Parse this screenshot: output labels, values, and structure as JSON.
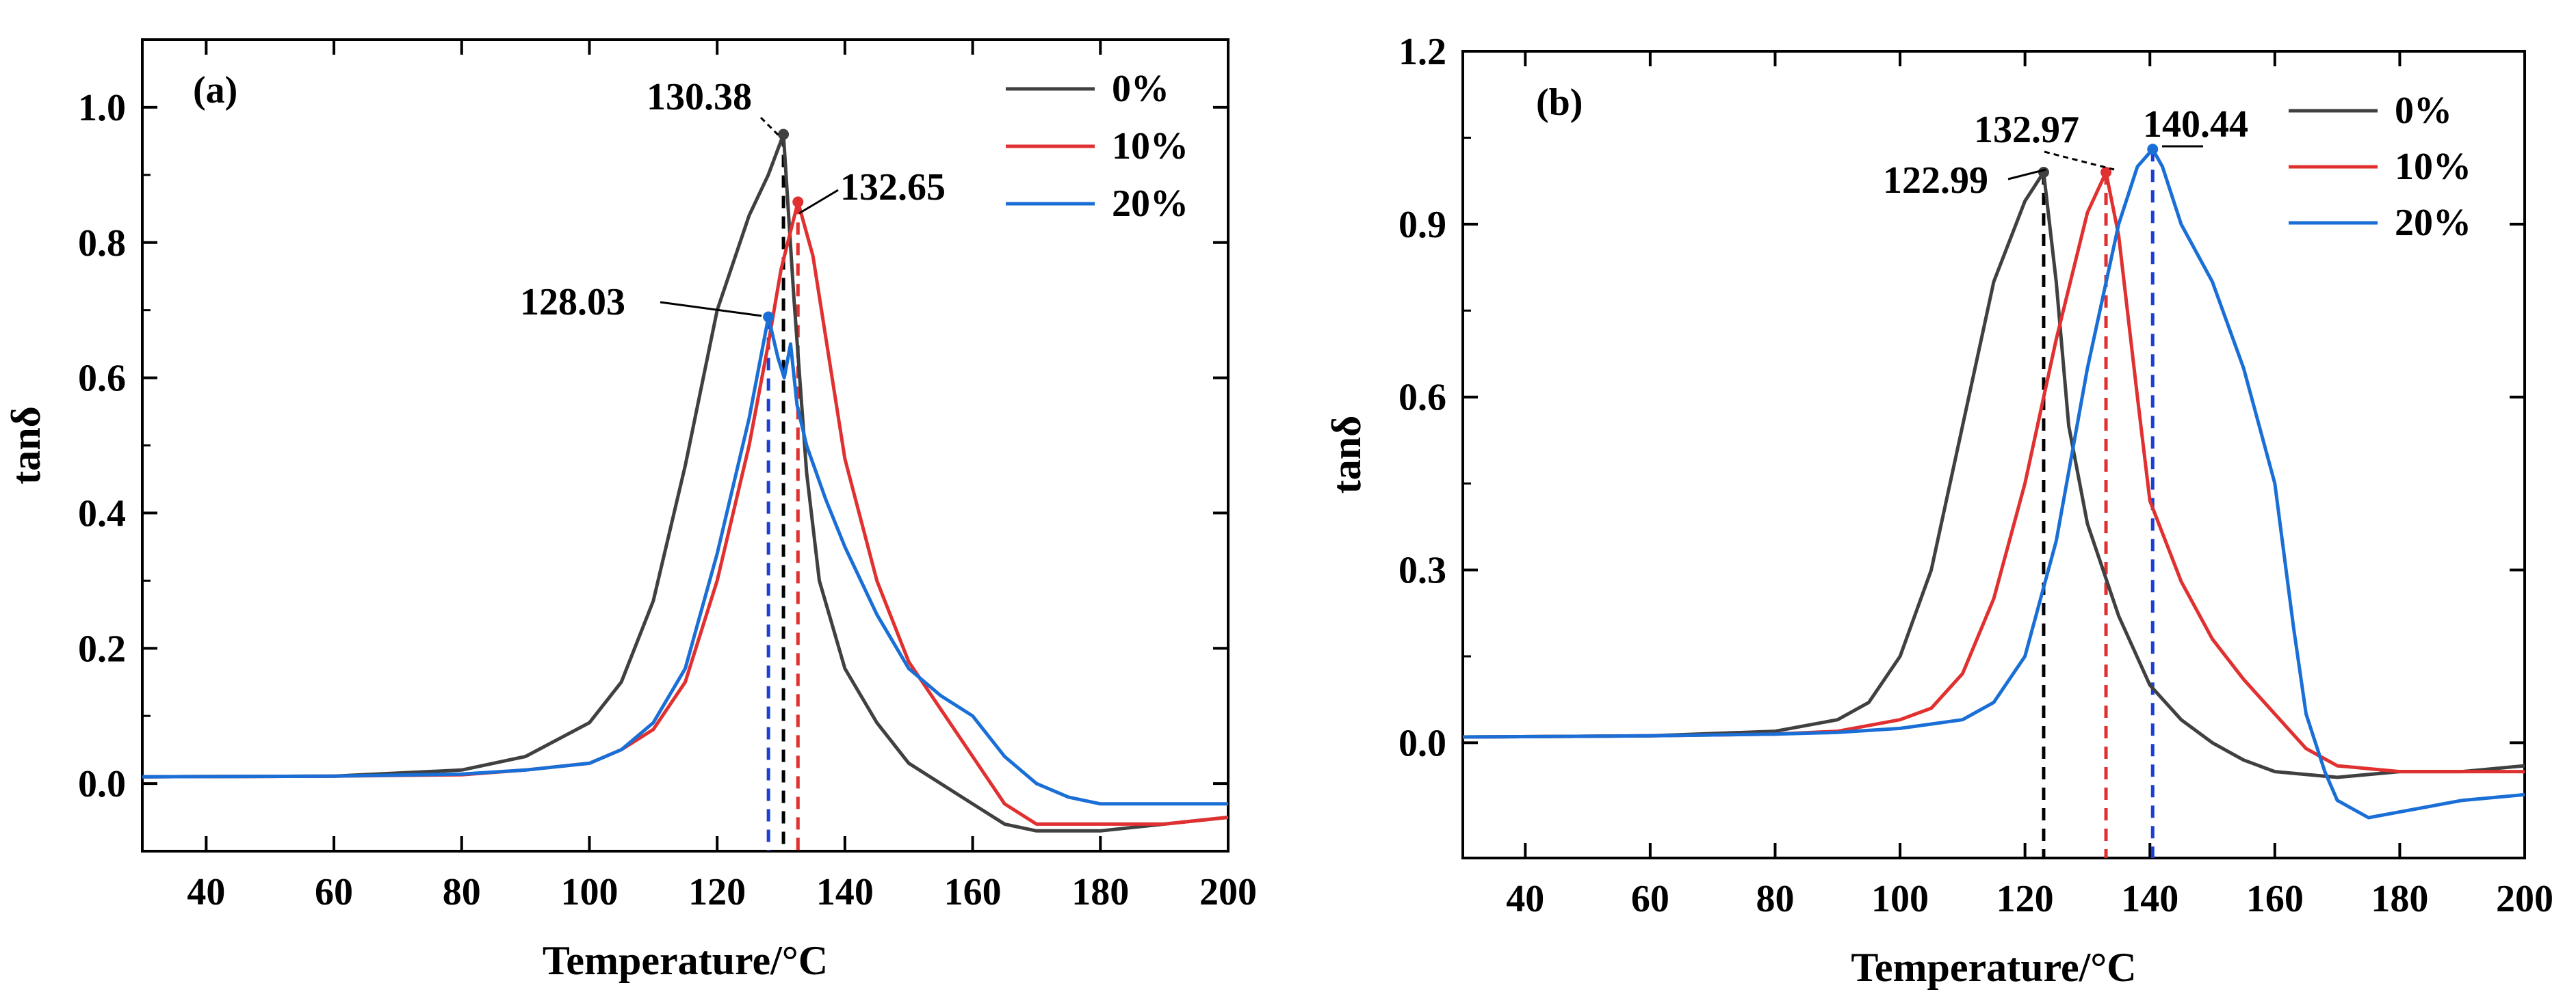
{
  "chart_data": [
    {
      "type": "line",
      "panel_label": "(a)",
      "xlabel": "Temperature/°C",
      "ylabel": "tanδ",
      "xlim": [
        30,
        200
      ],
      "ylim": [
        -0.1,
        1.1
      ],
      "xticks": [
        40,
        60,
        80,
        100,
        120,
        140,
        160,
        180,
        200
      ],
      "yticks": [
        0.0,
        0.2,
        0.4,
        0.6,
        0.8,
        1.0
      ],
      "ytick_labels": [
        "0.0",
        "0.2",
        "0.4",
        "0.6",
        "0.8",
        "1.0"
      ],
      "legend_position": "top-right",
      "series": [
        {
          "name": "0%",
          "color": "#404040",
          "points": [
            [
              30,
              0.01
            ],
            [
              60,
              0.011
            ],
            [
              80,
              0.02
            ],
            [
              90,
              0.04
            ],
            [
              100,
              0.09
            ],
            [
              105,
              0.15
            ],
            [
              110,
              0.27
            ],
            [
              115,
              0.47
            ],
            [
              120,
              0.7
            ],
            [
              125,
              0.84
            ],
            [
              128,
              0.9
            ],
            [
              130.38,
              0.96
            ],
            [
              132,
              0.72
            ],
            [
              134,
              0.46
            ],
            [
              136,
              0.3
            ],
            [
              140,
              0.17
            ],
            [
              145,
              0.09
            ],
            [
              150,
              0.03
            ],
            [
              160,
              -0.03
            ],
            [
              165,
              -0.06
            ],
            [
              170,
              -0.07
            ],
            [
              180,
              -0.07
            ],
            [
              190,
              -0.06
            ],
            [
              200,
              -0.05
            ]
          ]
        },
        {
          "name": "10%",
          "color": "#e03030",
          "points": [
            [
              30,
              0.01
            ],
            [
              60,
              0.011
            ],
            [
              80,
              0.013
            ],
            [
              90,
              0.02
            ],
            [
              100,
              0.03
            ],
            [
              105,
              0.05
            ],
            [
              110,
              0.08
            ],
            [
              115,
              0.15
            ],
            [
              120,
              0.3
            ],
            [
              125,
              0.5
            ],
            [
              128,
              0.65
            ],
            [
              130,
              0.76
            ],
            [
              132.65,
              0.86
            ],
            [
              135,
              0.78
            ],
            [
              138,
              0.6
            ],
            [
              140,
              0.48
            ],
            [
              145,
              0.3
            ],
            [
              150,
              0.18
            ],
            [
              155,
              0.11
            ],
            [
              160,
              0.04
            ],
            [
              165,
              -0.03
            ],
            [
              170,
              -0.06
            ],
            [
              180,
              -0.06
            ],
            [
              190,
              -0.06
            ],
            [
              200,
              -0.05
            ]
          ]
        },
        {
          "name": "20%",
          "color": "#1a6fd6",
          "points": [
            [
              30,
              0.01
            ],
            [
              60,
              0.011
            ],
            [
              80,
              0.014
            ],
            [
              90,
              0.02
            ],
            [
              100,
              0.03
            ],
            [
              105,
              0.05
            ],
            [
              110,
              0.09
            ],
            [
              115,
              0.17
            ],
            [
              120,
              0.34
            ],
            [
              125,
              0.54
            ],
            [
              128.03,
              0.69
            ],
            [
              129.5,
              0.63
            ],
            [
              130.5,
              0.6
            ],
            [
              131.5,
              0.65
            ],
            [
              132.5,
              0.56
            ],
            [
              134,
              0.5
            ],
            [
              137,
              0.42
            ],
            [
              140,
              0.35
            ],
            [
              145,
              0.25
            ],
            [
              150,
              0.17
            ],
            [
              155,
              0.13
            ],
            [
              160,
              0.1
            ],
            [
              165,
              0.04
            ],
            [
              170,
              0.0
            ],
            [
              175,
              -0.02
            ],
            [
              180,
              -0.03
            ],
            [
              190,
              -0.03
            ],
            [
              200,
              -0.03
            ]
          ]
        }
      ],
      "peak_markers": [
        {
          "label": "130.38",
          "x": 130.38,
          "y": 0.96,
          "color": "#000000"
        },
        {
          "label": "132.65",
          "x": 132.65,
          "y": 0.86,
          "color": "#e03030"
        },
        {
          "label": "128.03",
          "x": 128.03,
          "y": 0.69,
          "color": "#1a3fd6"
        }
      ]
    },
    {
      "type": "line",
      "panel_label": "(b)",
      "xlabel": "Temperature/°C",
      "ylabel": "tanδ",
      "xlim": [
        30,
        200
      ],
      "ylim": [
        -0.2,
        1.2
      ],
      "xticks": [
        40,
        60,
        80,
        100,
        120,
        140,
        160,
        180,
        200
      ],
      "yticks": [
        0.0,
        0.3,
        0.6,
        0.9,
        1.2
      ],
      "ytick_labels": [
        "0.0",
        "0.3",
        "0.6",
        "0.9",
        "1.2"
      ],
      "legend_position": "top-right",
      "series": [
        {
          "name": "0%",
          "color": "#404040",
          "points": [
            [
              30,
              0.01
            ],
            [
              60,
              0.012
            ],
            [
              80,
              0.02
            ],
            [
              90,
              0.04
            ],
            [
              95,
              0.07
            ],
            [
              100,
              0.15
            ],
            [
              105,
              0.3
            ],
            [
              110,
              0.55
            ],
            [
              115,
              0.8
            ],
            [
              120,
              0.94
            ],
            [
              122.99,
              0.99
            ],
            [
              125,
              0.8
            ],
            [
              127,
              0.55
            ],
            [
              130,
              0.38
            ],
            [
              135,
              0.22
            ],
            [
              140,
              0.1
            ],
            [
              145,
              0.04
            ],
            [
              150,
              0.0
            ],
            [
              155,
              -0.03
            ],
            [
              160,
              -0.05
            ],
            [
              170,
              -0.06
            ],
            [
              180,
              -0.05
            ],
            [
              190,
              -0.05
            ],
            [
              200,
              -0.04
            ]
          ]
        },
        {
          "name": "10%",
          "color": "#e03030",
          "points": [
            [
              30,
              0.01
            ],
            [
              60,
              0.012
            ],
            [
              80,
              0.015
            ],
            [
              90,
              0.02
            ],
            [
              100,
              0.04
            ],
            [
              105,
              0.06
            ],
            [
              110,
              0.12
            ],
            [
              115,
              0.25
            ],
            [
              120,
              0.45
            ],
            [
              125,
              0.7
            ],
            [
              130,
              0.92
            ],
            [
              132.97,
              0.99
            ],
            [
              135,
              0.88
            ],
            [
              138,
              0.6
            ],
            [
              140,
              0.42
            ],
            [
              145,
              0.28
            ],
            [
              150,
              0.18
            ],
            [
              155,
              0.11
            ],
            [
              160,
              0.05
            ],
            [
              165,
              -0.01
            ],
            [
              170,
              -0.04
            ],
            [
              180,
              -0.05
            ],
            [
              190,
              -0.05
            ],
            [
              200,
              -0.05
            ]
          ]
        },
        {
          "name": "20%",
          "color": "#1a6fd6",
          "points": [
            [
              30,
              0.01
            ],
            [
              60,
              0.012
            ],
            [
              80,
              0.015
            ],
            [
              90,
              0.018
            ],
            [
              100,
              0.025
            ],
            [
              110,
              0.04
            ],
            [
              115,
              0.07
            ],
            [
              120,
              0.15
            ],
            [
              125,
              0.35
            ],
            [
              130,
              0.65
            ],
            [
              135,
              0.9
            ],
            [
              138,
              1.0
            ],
            [
              140.44,
              1.03
            ],
            [
              142,
              1.0
            ],
            [
              145,
              0.9
            ],
            [
              150,
              0.8
            ],
            [
              155,
              0.65
            ],
            [
              160,
              0.45
            ],
            [
              163,
              0.2
            ],
            [
              165,
              0.05
            ],
            [
              168,
              -0.05
            ],
            [
              170,
              -0.1
            ],
            [
              175,
              -0.13
            ],
            [
              180,
              -0.12
            ],
            [
              190,
              -0.1
            ],
            [
              200,
              -0.09
            ]
          ]
        }
      ],
      "peak_markers": [
        {
          "label": "122.99",
          "x": 122.99,
          "y": 0.99,
          "color": "#000000"
        },
        {
          "label": "132.97",
          "x": 132.97,
          "y": 0.99,
          "color": "#e03030"
        },
        {
          "label": "140.44",
          "x": 140.44,
          "y": 1.03,
          "color": "#1a3fd6"
        }
      ]
    }
  ]
}
